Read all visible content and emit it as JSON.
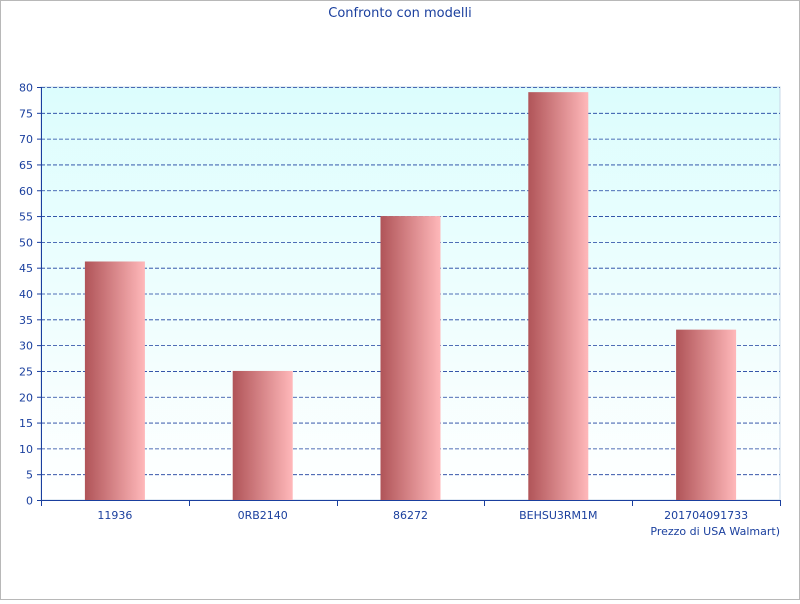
{
  "chart_data": {
    "type": "bar",
    "title": "Confronto con modelli",
    "xlabel": "Prezzo di USA Walmart)",
    "ylabel": "",
    "categories": [
      "11936",
      "0RB2140",
      "86272",
      "BEHSU3RM1M",
      "201704091733"
    ],
    "values": [
      46.2,
      25,
      55,
      79,
      33
    ],
    "ylim": [
      0,
      80
    ],
    "ytick_step": 5,
    "grid": true,
    "legend": "none",
    "colors": {
      "plot_bg_top": "#dcfdfd",
      "plot_bg_bottom": "#ffffff",
      "grid": "#1a3f9e",
      "axis": "#1a3f9e",
      "text": "#1a3f9e",
      "bar_dark": "#b05458",
      "bar_light": "#ffb8ba"
    }
  }
}
